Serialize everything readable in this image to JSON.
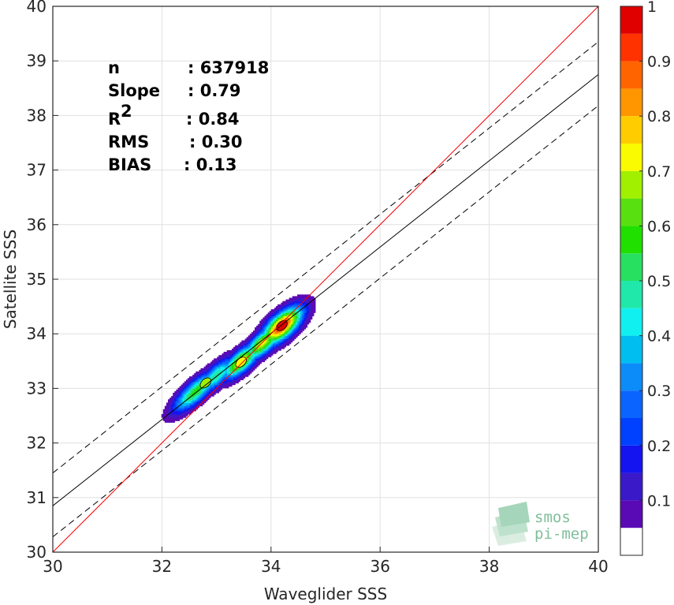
{
  "chart_data": {
    "type": "heatmap",
    "title": "",
    "xlabel": "Waveglider SSS",
    "ylabel": "Satellite SSS",
    "xlim": [
      30,
      40
    ],
    "ylim": [
      30,
      40
    ],
    "xticks": [
      30,
      32,
      34,
      36,
      38,
      40
    ],
    "yticks": [
      30,
      31,
      32,
      33,
      34,
      35,
      36,
      37,
      38,
      39,
      40
    ],
    "grid": true,
    "stats": {
      "n_label": "n",
      "n_value": ": 637918",
      "slope_label": "Slope",
      "slope_value": ": 0.79",
      "r2_label": "R",
      "r2_sup": "2",
      "r2_value": ": 0.84",
      "rms_label": "RMS",
      "rms_value": ": 0.30",
      "bias_label": "BIAS",
      "bias_value": ": 0.13"
    },
    "lines": {
      "identity": {
        "color": "#ff0000",
        "x": [
          30,
          40
        ],
        "y": [
          30,
          40
        ]
      },
      "fit": {
        "color": "#000000",
        "x": [
          30,
          40
        ],
        "y": [
          30.85,
          38.75
        ]
      },
      "fit_plus_band": {
        "color": "#000000",
        "style": "dashed",
        "x": [
          30,
          40
        ],
        "y": [
          31.45,
          39.35
        ]
      },
      "fit_minus_band": {
        "color": "#000000",
        "style": "dashed",
        "x": [
          30,
          40
        ],
        "y": [
          30.28,
          38.18
        ]
      }
    },
    "density": {
      "direction_angle_deg": 42,
      "ridge_centers": [
        [
          32.62,
          32.95
        ],
        [
          33.0,
          33.24
        ],
        [
          33.45,
          33.5
        ],
        [
          33.85,
          33.84
        ],
        [
          34.2,
          34.15
        ]
      ],
      "ridge_amplitudes": [
        0.58,
        0.5,
        0.72,
        0.72,
        0.95
      ],
      "ridge_sigmas": [
        [
          0.36,
          0.12
        ],
        [
          0.32,
          0.12
        ],
        [
          0.3,
          0.12
        ],
        [
          0.3,
          0.12
        ],
        [
          0.32,
          0.14
        ]
      ],
      "peaks": [
        {
          "x": 34.2,
          "y": 34.15,
          "level": 0.95
        },
        {
          "x": 33.45,
          "y": 33.48,
          "level": 0.72
        },
        {
          "x": 32.8,
          "y": 33.1,
          "level": 0.68
        }
      ]
    },
    "colorbar": {
      "range": [
        0,
        1
      ],
      "levels": [
        0,
        0.05,
        0.1,
        0.15,
        0.2,
        0.25,
        0.3,
        0.35,
        0.4,
        0.45,
        0.5,
        0.55,
        0.6,
        0.65,
        0.7,
        0.75,
        0.8,
        0.85,
        0.9,
        0.95,
        1
      ],
      "colors": [
        "#ffffff",
        "#5a0ab4",
        "#3a19c8",
        "#1414f0",
        "#0040ff",
        "#0a64ff",
        "#0c8cf8",
        "#00bef0",
        "#10f0f0",
        "#20e8aa",
        "#28e060",
        "#20e000",
        "#58e010",
        "#a0f000",
        "#fafa00",
        "#ffcc00",
        "#ff9600",
        "#ff6400",
        "#ff3200",
        "#e00000",
        "#9c0000"
      ],
      "ticks": [
        0.1,
        0.2,
        0.3,
        0.4,
        0.5,
        0.6,
        0.7,
        0.8,
        0.9,
        1
      ],
      "tick_labels": [
        "0.1",
        "0.2",
        "0.3",
        "0.4",
        "0.5",
        "0.6",
        "0.7",
        "0.8",
        "0.9",
        "1"
      ]
    },
    "logo": {
      "line1": "smos",
      "line2": "pi-mep"
    }
  }
}
